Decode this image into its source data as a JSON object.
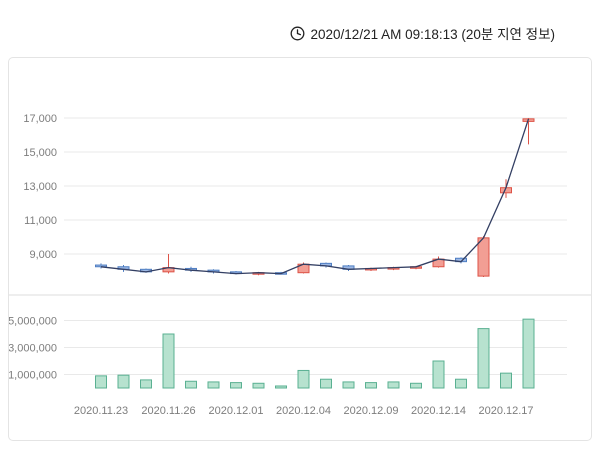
{
  "header": {
    "timestamp": "2020/12/21 AM 09:18:13 (20분 지연 정보)",
    "clock_icon": "clock-outline"
  },
  "colors": {
    "up_fill": "#f29e94",
    "up_stroke": "#dd5347",
    "down_fill": "#9db9e6",
    "down_stroke": "#4f7ec2",
    "volume_fill": "#b7e2cf",
    "volume_stroke": "#5ab092",
    "line": "#333f63",
    "grid": "#e9e9e9",
    "separator": "#dddddd",
    "axis_text": "#7d7d7d",
    "panel_border": "#e4e4e4"
  },
  "chart_data": {
    "type": "candlestick",
    "subtype": "price-with-volume",
    "legend_position": "none",
    "grid": true,
    "price_axis": {
      "ticks": [
        17000,
        15000,
        13000,
        11000,
        9000
      ],
      "tick_labels": [
        "17,000",
        "15,000",
        "13,000",
        "11,000",
        "9,000"
      ],
      "range_shown": [
        7000,
        18000
      ]
    },
    "volume_axis": {
      "ticks": [
        5000000,
        3000000,
        1000000
      ],
      "tick_labels": [
        "5,000,000",
        "3,000,000",
        "1,000,000"
      ],
      "range_shown": [
        0,
        5500000
      ]
    },
    "x_ticks": [
      {
        "index": 0,
        "label": "2020.11.23"
      },
      {
        "index": 3,
        "label": "2020.11.26"
      },
      {
        "index": 6,
        "label": "2020.12.01"
      },
      {
        "index": 9,
        "label": "2020.12.04"
      },
      {
        "index": 12,
        "label": "2020.12.09"
      },
      {
        "index": 15,
        "label": "2020.12.14"
      },
      {
        "index": 18,
        "label": "2020.12.17"
      }
    ],
    "candles": [
      {
        "date": "2020.11.23",
        "open": 8350,
        "high": 8450,
        "low": 8150,
        "close": 8250,
        "volume": 900000
      },
      {
        "date": "2020.11.24",
        "open": 8250,
        "high": 8350,
        "low": 7950,
        "close": 8100,
        "volume": 950000
      },
      {
        "date": "2020.11.25",
        "open": 8100,
        "high": 8150,
        "low": 7900,
        "close": 7950,
        "volume": 600000
      },
      {
        "date": "2020.11.26",
        "open": 7950,
        "high": 9000,
        "low": 7850,
        "close": 8200,
        "volume": 4000000
      },
      {
        "date": "2020.11.27",
        "open": 8150,
        "high": 8250,
        "low": 7950,
        "close": 8050,
        "volume": 500000
      },
      {
        "date": "2020.11.30",
        "open": 8050,
        "high": 8100,
        "low": 7850,
        "close": 7950,
        "volume": 450000
      },
      {
        "date": "2020.12.01",
        "open": 7950,
        "high": 8000,
        "low": 7800,
        "close": 7850,
        "volume": 400000
      },
      {
        "date": "2020.12.02",
        "open": 7850,
        "high": 7950,
        "low": 7750,
        "close": 7900,
        "volume": 350000
      },
      {
        "date": "2020.12.03",
        "open": 7900,
        "high": 7950,
        "low": 7800,
        "close": 7850,
        "volume": 150000
      },
      {
        "date": "2020.12.04",
        "open": 7900,
        "high": 8500,
        "low": 7850,
        "close": 8400,
        "volume": 1300000
      },
      {
        "date": "2020.12.07",
        "open": 8450,
        "high": 8500,
        "low": 8200,
        "close": 8300,
        "volume": 650000
      },
      {
        "date": "2020.12.08",
        "open": 8300,
        "high": 8350,
        "low": 8000,
        "close": 8100,
        "volume": 450000
      },
      {
        "date": "2020.12.09",
        "open": 8100,
        "high": 8200,
        "low": 8000,
        "close": 8150,
        "volume": 400000
      },
      {
        "date": "2020.12.10",
        "open": 8150,
        "high": 8250,
        "low": 8050,
        "close": 8200,
        "volume": 450000
      },
      {
        "date": "2020.12.11",
        "open": 8200,
        "high": 8300,
        "low": 8100,
        "close": 8250,
        "volume": 350000
      },
      {
        "date": "2020.12.14",
        "open": 8250,
        "high": 8850,
        "low": 8200,
        "close": 8700,
        "volume": 2000000
      },
      {
        "date": "2020.12.15",
        "open": 8750,
        "high": 8800,
        "low": 8450,
        "close": 8550,
        "volume": 650000
      },
      {
        "date": "2020.12.16",
        "open": 7700,
        "high": 10050,
        "low": 7650,
        "close": 9950,
        "volume": 4400000
      },
      {
        "date": "2020.12.17",
        "open": 12600,
        "high": 13400,
        "low": 12300,
        "close": 12900,
        "volume": 1100000
      },
      {
        "date": "2020.12.18",
        "open": 16800,
        "high": 17000,
        "low": 15450,
        "close": 16950,
        "volume": 5100000
      }
    ]
  }
}
